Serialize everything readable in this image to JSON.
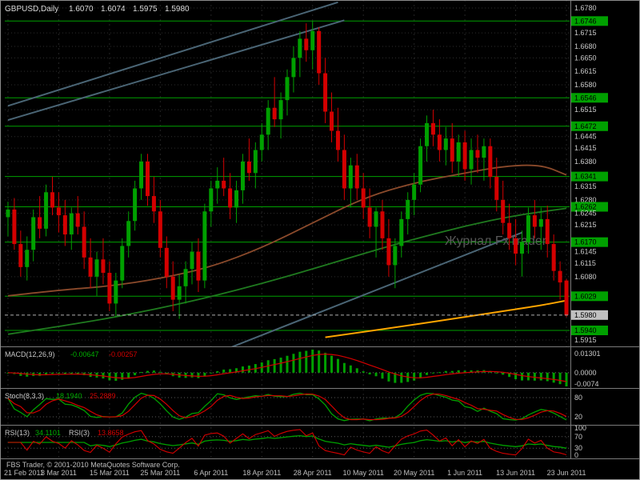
{
  "header": {
    "symbol_tf": "GBPUSD,Daily",
    "open": "1.6070",
    "high": "1.6074",
    "low": "1.5975",
    "close": "1.5980"
  },
  "watermark": "Журнал FxTrader",
  "footer": {
    "copyright": "FBS Trader, © 2001-2010 MetaQuotes Software Corp."
  },
  "colors": {
    "up": "#00A000",
    "down": "#D40000",
    "level": "#00A000",
    "trend": "#4A6575",
    "orange": "#FFA500",
    "ma_slow": "#1F7A1F",
    "ma_medium": "#8B4A2B",
    "axis_text": "#C9C9C9",
    "badge_text": "#000000",
    "current_badge": "#C0C0C0"
  },
  "chart_data": {
    "type": "candlestick",
    "symbol": "GBPUSD",
    "timeframe": "Daily",
    "ohlc_display": {
      "open": 1.607,
      "high": 1.6074,
      "low": 1.5975,
      "close": 1.598
    },
    "current_price": 1.598,
    "y_axis": {
      "min": 1.5915,
      "max": 1.678,
      "labels": [
        {
          "v": "1.6780",
          "k": "grid"
        },
        {
          "v": "1.6746",
          "k": "level"
        },
        {
          "v": "1.6715",
          "k": "grid"
        },
        {
          "v": "1.6680",
          "k": "grid"
        },
        {
          "v": "1.6650",
          "k": "grid"
        },
        {
          "v": "1.6615",
          "k": "grid"
        },
        {
          "v": "1.6580",
          "k": "grid"
        },
        {
          "v": "1.6546",
          "k": "level"
        },
        {
          "v": "1.6515",
          "k": "grid"
        },
        {
          "v": "1.6472",
          "k": "level"
        },
        {
          "v": "1.6445",
          "k": "grid"
        },
        {
          "v": "1.6415",
          "k": "grid"
        },
        {
          "v": "1.6380",
          "k": "grid"
        },
        {
          "v": "1.6341",
          "k": "level"
        },
        {
          "v": "1.6315",
          "k": "grid"
        },
        {
          "v": "1.6280",
          "k": "grid"
        },
        {
          "v": "1.6262",
          "k": "level"
        },
        {
          "v": "1.6245",
          "k": "grid"
        },
        {
          "v": "1.6215",
          "k": "grid"
        },
        {
          "v": "1.6170",
          "k": "level"
        },
        {
          "v": "1.6145",
          "k": "grid"
        },
        {
          "v": "1.6115",
          "k": "grid"
        },
        {
          "v": "1.6080",
          "k": "grid"
        },
        {
          "v": "1.6029",
          "k": "level"
        },
        {
          "v": "1.5980",
          "k": "current"
        },
        {
          "v": "1.5940",
          "k": "level"
        },
        {
          "v": "1.5915",
          "k": "grid"
        }
      ]
    },
    "support_resistance_levels": [
      1.6746,
      1.6546,
      1.6472,
      1.6341,
      1.6262,
      1.617,
      1.6029,
      1.594
    ],
    "x_labels": [
      {
        "i": 0,
        "t": "21 Feb 2011"
      },
      {
        "i": 8,
        "t": "3 Mar 2011"
      },
      {
        "i": 16,
        "t": "15 Mar 2011"
      },
      {
        "i": 24,
        "t": "25 Mar 2011"
      },
      {
        "i": 32,
        "t": "6 Apr 2011"
      },
      {
        "i": 40,
        "t": "18 Apr 2011"
      },
      {
        "i": 48,
        "t": "28 Apr 2011"
      },
      {
        "i": 56,
        "t": "10 May 2011"
      },
      {
        "i": 64,
        "t": "20 May 2011"
      },
      {
        "i": 72,
        "t": "1 Jun 2011"
      },
      {
        "i": 80,
        "t": "13 Jun 2011"
      },
      {
        "i": 88,
        "t": "23 Jun 2011"
      }
    ],
    "candles": [
      [
        1.6235,
        1.6275,
        1.6185,
        1.6255
      ],
      [
        1.6255,
        1.6285,
        1.615,
        1.6165
      ],
      [
        1.6165,
        1.62,
        1.608,
        1.6105
      ],
      [
        1.6105,
        1.6185,
        1.607,
        1.615
      ],
      [
        1.615,
        1.6255,
        1.612,
        1.6235
      ],
      [
        1.6235,
        1.629,
        1.618,
        1.6205
      ],
      [
        1.6205,
        1.632,
        1.6185,
        1.63
      ],
      [
        1.63,
        1.634,
        1.624,
        1.626
      ],
      [
        1.626,
        1.63,
        1.6195,
        1.624
      ],
      [
        1.624,
        1.628,
        1.616,
        1.619
      ],
      [
        1.619,
        1.626,
        1.615,
        1.6245
      ],
      [
        1.6245,
        1.629,
        1.619,
        1.621
      ],
      [
        1.621,
        1.625,
        1.61,
        1.613
      ],
      [
        1.613,
        1.618,
        1.605,
        1.608
      ],
      [
        1.608,
        1.6145,
        1.603,
        1.6125
      ],
      [
        1.6125,
        1.618,
        1.606,
        1.609
      ],
      [
        1.609,
        1.612,
        1.599,
        1.601
      ],
      [
        1.601,
        1.609,
        1.5975,
        1.607
      ],
      [
        1.607,
        1.618,
        1.605,
        1.616
      ],
      [
        1.616,
        1.625,
        1.613,
        1.6225
      ],
      [
        1.6225,
        1.633,
        1.62,
        1.631
      ],
      [
        1.631,
        1.64,
        1.628,
        1.638
      ],
      [
        1.638,
        1.64,
        1.6265,
        1.629
      ],
      [
        1.629,
        1.634,
        1.622,
        1.625
      ],
      [
        1.625,
        1.628,
        1.613,
        1.6155
      ],
      [
        1.6155,
        1.6185,
        1.605,
        1.608
      ],
      [
        1.608,
        1.612,
        1.599,
        1.602
      ],
      [
        1.602,
        1.6085,
        1.597,
        1.6055
      ],
      [
        1.6055,
        1.612,
        1.601,
        1.61
      ],
      [
        1.61,
        1.617,
        1.606,
        1.6145
      ],
      [
        1.6145,
        1.618,
        1.604,
        1.607
      ],
      [
        1.607,
        1.627,
        1.605,
        1.625
      ],
      [
        1.625,
        1.633,
        1.621,
        1.631
      ],
      [
        1.631,
        1.6365,
        1.627,
        1.633
      ],
      [
        1.633,
        1.639,
        1.629,
        1.631
      ],
      [
        1.631,
        1.635,
        1.623,
        1.626
      ],
      [
        1.626,
        1.633,
        1.622,
        1.6305
      ],
      [
        1.6305,
        1.64,
        1.627,
        1.638
      ],
      [
        1.638,
        1.644,
        1.633,
        1.635
      ],
      [
        1.635,
        1.643,
        1.631,
        1.641
      ],
      [
        1.641,
        1.648,
        1.638,
        1.645
      ],
      [
        1.645,
        1.654,
        1.641,
        1.652
      ],
      [
        1.652,
        1.66,
        1.647,
        1.649
      ],
      [
        1.649,
        1.656,
        1.644,
        1.654
      ],
      [
        1.654,
        1.662,
        1.65,
        1.66
      ],
      [
        1.66,
        1.668,
        1.656,
        1.665
      ],
      [
        1.665,
        1.672,
        1.66,
        1.67
      ],
      [
        1.67,
        1.674,
        1.664,
        1.667
      ],
      [
        1.667,
        1.6746,
        1.662,
        1.672
      ],
      [
        1.672,
        1.673,
        1.658,
        1.661
      ],
      [
        1.661,
        1.665,
        1.648,
        1.651
      ],
      [
        1.651,
        1.656,
        1.643,
        1.646
      ],
      [
        1.646,
        1.652,
        1.638,
        1.641
      ],
      [
        1.641,
        1.645,
        1.628,
        1.631
      ],
      [
        1.631,
        1.639,
        1.626,
        1.637
      ],
      [
        1.637,
        1.64,
        1.628,
        1.631
      ],
      [
        1.631,
        1.635,
        1.623,
        1.626
      ],
      [
        1.626,
        1.631,
        1.618,
        1.621
      ],
      [
        1.621,
        1.626,
        1.613,
        1.625
      ],
      [
        1.625,
        1.628,
        1.615,
        1.618
      ],
      [
        1.618,
        1.623,
        1.608,
        1.611
      ],
      [
        1.611,
        1.618,
        1.605,
        1.616
      ],
      [
        1.616,
        1.625,
        1.613,
        1.623
      ],
      [
        1.623,
        1.63,
        1.619,
        1.628
      ],
      [
        1.628,
        1.635,
        1.624,
        1.632
      ],
      [
        1.632,
        1.644,
        1.63,
        1.642
      ],
      [
        1.642,
        1.65,
        1.638,
        1.648
      ],
      [
        1.648,
        1.6515,
        1.642,
        1.645
      ],
      [
        1.645,
        1.649,
        1.638,
        1.641
      ],
      [
        1.641,
        1.647,
        1.637,
        1.644
      ],
      [
        1.644,
        1.648,
        1.635,
        1.638
      ],
      [
        1.638,
        1.645,
        1.634,
        1.643
      ],
      [
        1.643,
        1.646,
        1.633,
        1.636
      ],
      [
        1.636,
        1.644,
        1.632,
        1.641
      ],
      [
        1.641,
        1.645,
        1.635,
        1.639
      ],
      [
        1.639,
        1.644,
        1.633,
        1.642
      ],
      [
        1.642,
        1.644,
        1.631,
        1.634
      ],
      [
        1.634,
        1.639,
        1.625,
        1.628
      ],
      [
        1.628,
        1.633,
        1.619,
        1.622
      ],
      [
        1.622,
        1.627,
        1.615,
        1.618
      ],
      [
        1.618,
        1.623,
        1.611,
        1.614
      ],
      [
        1.614,
        1.62,
        1.608,
        1.617
      ],
      [
        1.617,
        1.626,
        1.614,
        1.624
      ],
      [
        1.624,
        1.628,
        1.618,
        1.621
      ],
      [
        1.621,
        1.626,
        1.615,
        1.623
      ],
      [
        1.623,
        1.6265,
        1.613,
        1.6165
      ],
      [
        1.6165,
        1.619,
        1.607,
        1.6095
      ],
      [
        1.6095,
        1.612,
        1.602,
        1.6065
      ],
      [
        1.607,
        1.6074,
        1.5975,
        1.598
      ]
    ],
    "overlays": {
      "ma_slow": {
        "name": "long moving average",
        "color": "#1F7A1F",
        "points": [
          [
            0,
            1.593
          ],
          [
            8,
            1.595
          ],
          [
            16,
            1.5972
          ],
          [
            24,
            1.5998
          ],
          [
            32,
            1.6028
          ],
          [
            40,
            1.6062
          ],
          [
            48,
            1.61
          ],
          [
            56,
            1.614
          ],
          [
            64,
            1.6178
          ],
          [
            72,
            1.6212
          ],
          [
            80,
            1.624
          ],
          [
            88,
            1.6258
          ]
        ]
      },
      "ma_medium": {
        "name": "medium moving average",
        "color": "#8B4A2B",
        "points": [
          [
            0,
            1.603
          ],
          [
            8,
            1.6045
          ],
          [
            16,
            1.6055
          ],
          [
            24,
            1.6075
          ],
          [
            32,
            1.6105
          ],
          [
            40,
            1.6155
          ],
          [
            48,
            1.622
          ],
          [
            56,
            1.6285
          ],
          [
            64,
            1.6325
          ],
          [
            72,
            1.635
          ],
          [
            78,
            1.6368
          ],
          [
            84,
            1.6372
          ],
          [
            88,
            1.6345
          ]
        ]
      },
      "trendlines": [
        {
          "p": [
            [
              0,
              1.6525
            ],
            [
              52,
              1.6795
            ]
          ]
        },
        {
          "p": [
            [
              0,
              1.6488
            ],
            [
              53,
              1.6748
            ]
          ]
        },
        {
          "p": [
            [
              35,
              1.5895
            ],
            [
              81,
              1.6195
            ]
          ]
        }
      ],
      "support_line": {
        "name": "rising support",
        "color": "#FFA500",
        "points": [
          [
            50,
            1.5922
          ],
          [
            62,
            1.595
          ],
          [
            74,
            1.598
          ],
          [
            84,
            1.6005
          ],
          [
            88,
            1.6018
          ]
        ]
      }
    },
    "indicators": {
      "macd": {
        "name": "MACD(12,26,9)",
        "value_main": "-0.00647",
        "value_signal": "-0.00257",
        "fast": 12,
        "slow": 26,
        "signal_period": 9,
        "scale_top": "0.01301",
        "scale_zero": "0.0000",
        "scale_bottom": "-0.0074"
      },
      "stoch": {
        "name": "Stoch(8,3,3)",
        "value_k": "18.1940",
        "value_d": "25.2889",
        "k_period": 8,
        "slowing": 3,
        "d_period": 3,
        "levels": [
          80,
          20
        ]
      },
      "rsi": {
        "name": "RSI(13)",
        "value_1": "34.1101",
        "name2": "RSI(3)",
        "value_2": "13.8658",
        "period_1": 13,
        "period_2": 3,
        "levels": [
          100,
          70,
          30,
          0
        ]
      }
    }
  }
}
